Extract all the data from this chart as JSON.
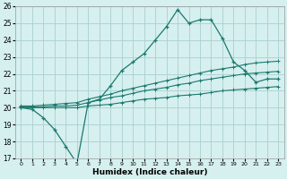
{
  "x": [
    0,
    1,
    2,
    3,
    4,
    5,
    6,
    7,
    8,
    9,
    10,
    11,
    12,
    13,
    14,
    15,
    16,
    17,
    18,
    19,
    20,
    21,
    22,
    23
  ],
  "line1": [
    20.0,
    19.9,
    19.4,
    18.7,
    17.7,
    16.7,
    20.3,
    20.5,
    21.3,
    22.2,
    22.7,
    23.2,
    24.0,
    24.8,
    25.8,
    25.0,
    25.2,
    25.2,
    24.1,
    22.7,
    22.2,
    21.5,
    21.7,
    21.7
  ],
  "line2": [
    20.0,
    20.0,
    20.0,
    20.0,
    20.0,
    20.0,
    20.1,
    20.15,
    20.2,
    20.3,
    20.4,
    20.5,
    20.55,
    20.6,
    20.7,
    20.75,
    20.8,
    20.9,
    21.0,
    21.05,
    21.1,
    21.15,
    21.2,
    21.25
  ],
  "line3": [
    20.05,
    20.05,
    20.05,
    20.1,
    20.1,
    20.15,
    20.3,
    20.45,
    20.6,
    20.7,
    20.85,
    21.0,
    21.1,
    21.2,
    21.35,
    21.45,
    21.6,
    21.7,
    21.8,
    21.9,
    22.0,
    22.05,
    22.1,
    22.15
  ],
  "line4": [
    20.1,
    20.1,
    20.15,
    20.2,
    20.25,
    20.3,
    20.5,
    20.65,
    20.8,
    21.0,
    21.15,
    21.3,
    21.45,
    21.6,
    21.75,
    21.9,
    22.05,
    22.2,
    22.3,
    22.4,
    22.55,
    22.65,
    22.7,
    22.75
  ],
  "color": "#1a7a6e",
  "bg_color": "#d6efef",
  "grid_color": "#aacfcf",
  "xlabel": "Humidex (Indice chaleur)",
  "ylim": [
    17,
    26
  ],
  "xlim": [
    -0.5,
    23.5
  ],
  "yticks": [
    17,
    18,
    19,
    20,
    21,
    22,
    23,
    24,
    25,
    26
  ],
  "xticks": [
    0,
    1,
    2,
    3,
    4,
    5,
    6,
    7,
    8,
    9,
    10,
    11,
    12,
    13,
    14,
    15,
    16,
    17,
    18,
    19,
    20,
    21,
    22,
    23
  ]
}
